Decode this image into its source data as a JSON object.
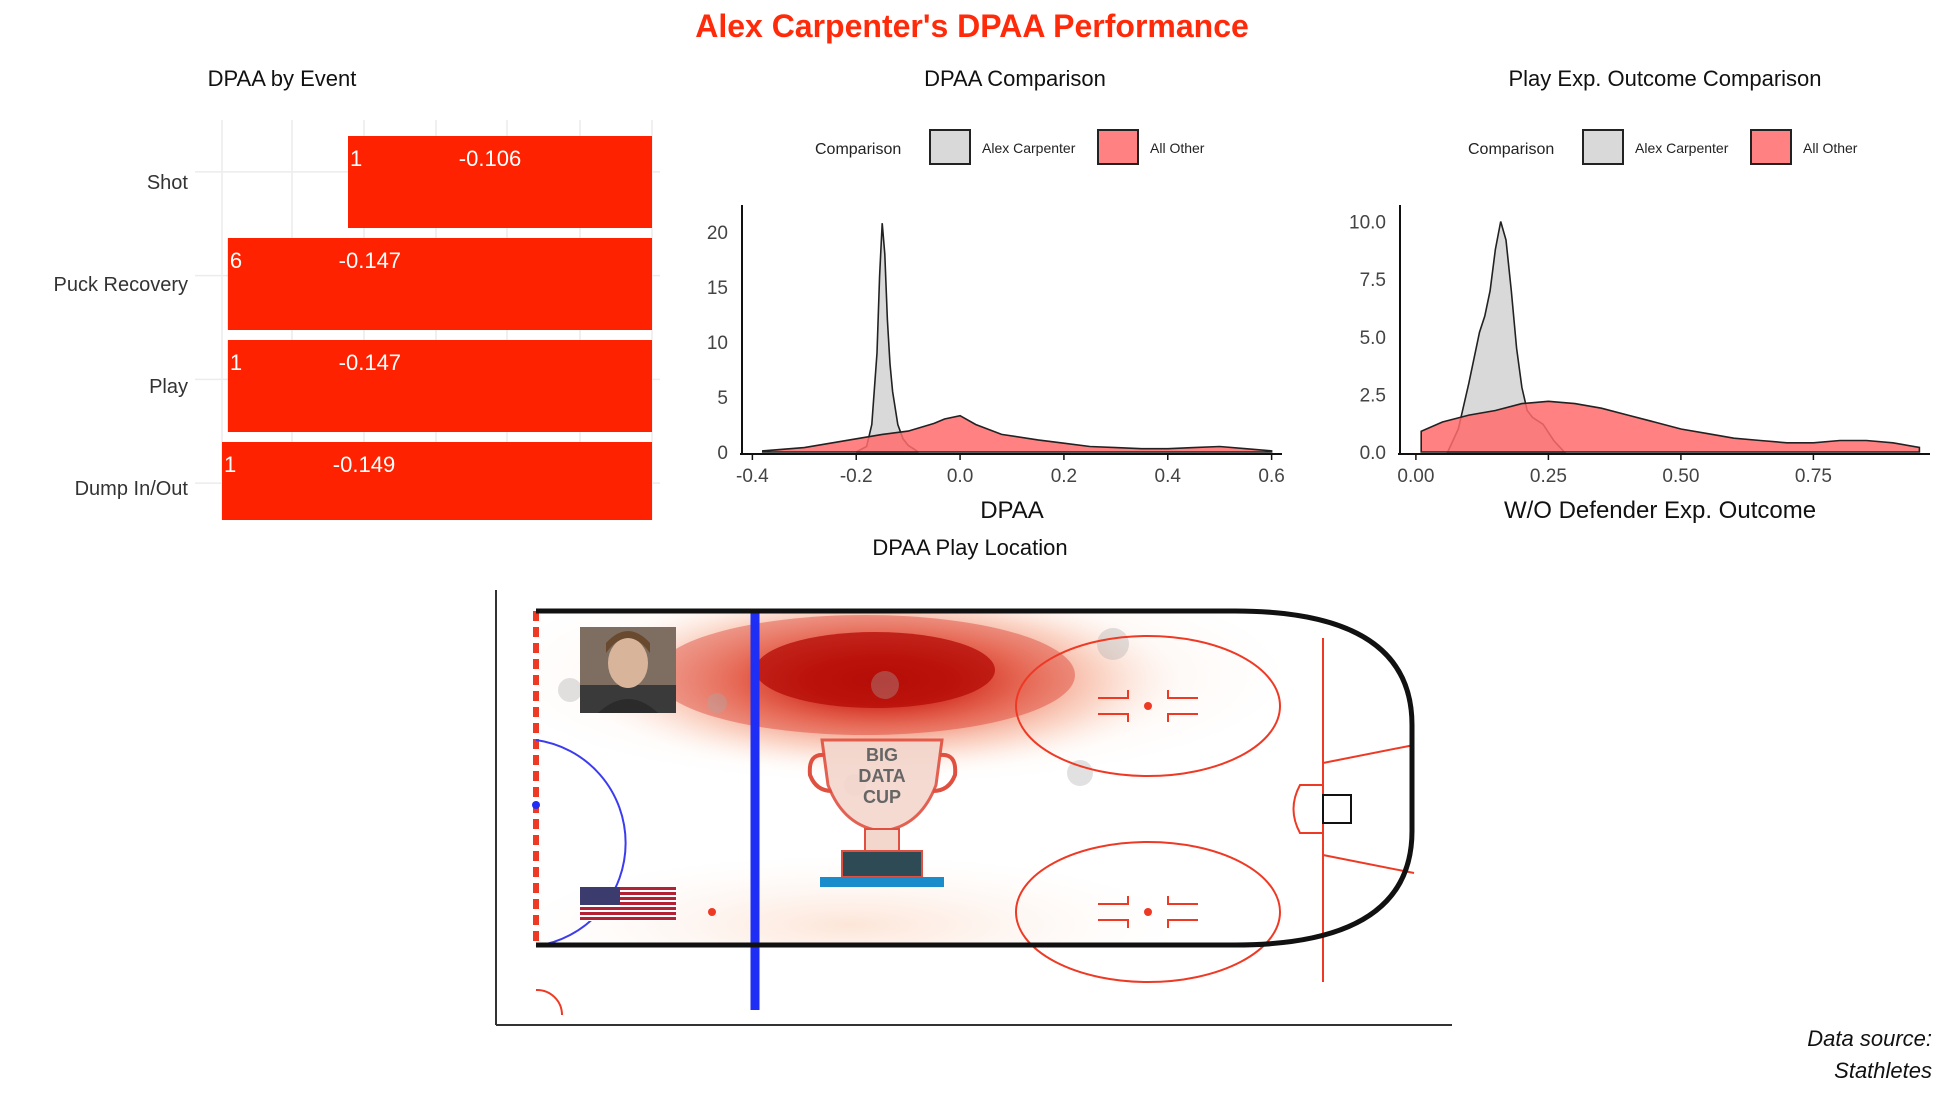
{
  "title": "Alex Carpenter's DPAA Performance",
  "source": {
    "line1": "Data source:",
    "line2": "Stathletes"
  },
  "colors": {
    "accent": "#ff2a0a",
    "bar": "#ff2200",
    "player_fill": "#d9d9d9",
    "other_fill": "#ff6b6b",
    "blue_line": "#1e2ef5",
    "rink_red": "#ee3a25"
  },
  "chart_data": [
    {
      "type": "bar",
      "title": "DPAA by Event",
      "categories": [
        "Shot",
        "Puck Recovery",
        "Play",
        "Dump In/Out"
      ],
      "values": [
        -0.106,
        -0.147,
        -0.147,
        -0.149
      ],
      "value_labels": [
        "-0.106",
        "-0.147",
        "-0.147",
        "-0.149"
      ],
      "counts": [
        "1",
        "6",
        "1",
        "1"
      ],
      "orientation": "horizontal",
      "grid": true
    },
    {
      "type": "area",
      "title": "DPAA Comparison",
      "xlabel": "DPAA",
      "xlim": [
        -0.42,
        0.62
      ],
      "ylim": [
        0,
        22
      ],
      "xticks": [
        "-0.4",
        "-0.2",
        "0.0",
        "0.2",
        "0.4",
        "0.6"
      ],
      "xtick_values": [
        -0.4,
        -0.2,
        0.0,
        0.2,
        0.4,
        0.6
      ],
      "yticks": [
        "0",
        "5",
        "10",
        "15",
        "20"
      ],
      "ytick_values": [
        0,
        5,
        10,
        15,
        20
      ],
      "legend_title": "Comparison",
      "legend_position": "top",
      "series": [
        {
          "name": "Alex Carpenter",
          "fill": "#d9d9d9",
          "alpha": 1,
          "x": [
            -0.2,
            -0.18,
            -0.17,
            -0.16,
            -0.155,
            -0.15,
            -0.145,
            -0.14,
            -0.135,
            -0.13,
            -0.125,
            -0.12,
            -0.11,
            -0.1,
            -0.09,
            -0.08
          ],
          "y": [
            0,
            0.5,
            2.5,
            9,
            16,
            20.8,
            18,
            12,
            8,
            5.5,
            4,
            2.5,
            1.2,
            0.6,
            0.3,
            0
          ]
        },
        {
          "name": "All Other",
          "fill": "#ff6b6b",
          "alpha": 0.85,
          "x": [
            -0.38,
            -0.3,
            -0.25,
            -0.2,
            -0.15,
            -0.1,
            -0.05,
            -0.03,
            0.0,
            0.03,
            0.08,
            0.15,
            0.2,
            0.25,
            0.3,
            0.35,
            0.4,
            0.45,
            0.5,
            0.55,
            0.6
          ],
          "y": [
            0.1,
            0.4,
            0.8,
            1.2,
            1.6,
            1.9,
            2.6,
            3.0,
            3.3,
            2.5,
            1.6,
            1.1,
            0.8,
            0.5,
            0.4,
            0.3,
            0.3,
            0.4,
            0.5,
            0.3,
            0.1
          ]
        }
      ]
    },
    {
      "type": "area",
      "title": "Play Exp. Outcome Comparison",
      "xlabel": "W/O Defender Exp. Outcome",
      "xlim": [
        -0.03,
        0.97
      ],
      "ylim": [
        0,
        10.5
      ],
      "xticks": [
        "0.00",
        "0.25",
        "0.50",
        "0.75"
      ],
      "xtick_values": [
        0,
        0.25,
        0.5,
        0.75
      ],
      "yticks": [
        "0.0",
        "2.5",
        "5.0",
        "7.5",
        "10.0"
      ],
      "ytick_values": [
        0,
        2.5,
        5,
        7.5,
        10
      ],
      "legend_title": "Comparison",
      "legend_position": "top",
      "series": [
        {
          "name": "Alex Carpenter",
          "fill": "#d9d9d9",
          "alpha": 1,
          "x": [
            0.06,
            0.08,
            0.1,
            0.12,
            0.13,
            0.14,
            0.15,
            0.16,
            0.17,
            0.18,
            0.19,
            0.2,
            0.21,
            0.22,
            0.24,
            0.26,
            0.28
          ],
          "y": [
            0,
            1,
            3,
            5.2,
            5.9,
            7,
            8.8,
            10,
            9.2,
            7,
            4.5,
            2.8,
            1.8,
            1.5,
            1.2,
            0.5,
            0
          ]
        },
        {
          "name": "All Other",
          "fill": "#ff6b6b",
          "alpha": 0.85,
          "x": [
            0.01,
            0.05,
            0.1,
            0.15,
            0.2,
            0.25,
            0.3,
            0.35,
            0.4,
            0.45,
            0.5,
            0.55,
            0.6,
            0.65,
            0.7,
            0.75,
            0.8,
            0.85,
            0.9,
            0.95
          ],
          "y": [
            0.9,
            1.3,
            1.6,
            1.8,
            2.1,
            2.2,
            2.1,
            1.9,
            1.6,
            1.3,
            1.0,
            0.8,
            0.6,
            0.5,
            0.4,
            0.4,
            0.5,
            0.5,
            0.4,
            0.2
          ]
        }
      ]
    },
    {
      "type": "heatmap",
      "title": "DPAA Play Location",
      "description_hotspot": "dark red concentration near top boards between the blue line and the faceoff circle",
      "logo_text": [
        "BIG",
        "DATA",
        "CUP"
      ]
    }
  ]
}
